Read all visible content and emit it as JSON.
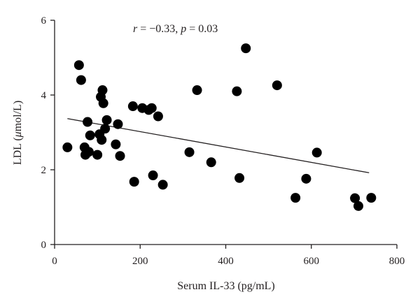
{
  "chart_data": {
    "type": "scatter",
    "title": "",
    "xlabel": "Serum IL-33 (pg/mL)",
    "ylabel_prefix": "LDL (",
    "ylabel_unit_italic": "μ",
    "ylabel_suffix": "mol/L)",
    "xlim": [
      0,
      800
    ],
    "ylim": [
      0,
      6
    ],
    "x_ticks": [
      0,
      200,
      400,
      600,
      800
    ],
    "y_ticks": [
      0,
      2,
      4,
      6
    ],
    "grid": false,
    "annotation": {
      "r_symbol": "r",
      "r_text": " = −0.33, ",
      "p_symbol": "p",
      "p_text": " = 0.03"
    },
    "trendline": {
      "x": [
        30,
        735
      ],
      "y": [
        3.37,
        1.92
      ]
    },
    "points": [
      {
        "x": 30,
        "y": 2.6
      },
      {
        "x": 57,
        "y": 4.8
      },
      {
        "x": 62,
        "y": 4.4
      },
      {
        "x": 70,
        "y": 2.6
      },
      {
        "x": 72,
        "y": 2.4
      },
      {
        "x": 77,
        "y": 3.28
      },
      {
        "x": 80,
        "y": 2.48
      },
      {
        "x": 83,
        "y": 2.92
      },
      {
        "x": 100,
        "y": 2.4
      },
      {
        "x": 105,
        "y": 2.95
      },
      {
        "x": 108,
        "y": 3.95
      },
      {
        "x": 110,
        "y": 2.8
      },
      {
        "x": 112,
        "y": 4.13
      },
      {
        "x": 114,
        "y": 3.78
      },
      {
        "x": 118,
        "y": 3.1
      },
      {
        "x": 122,
        "y": 3.33
      },
      {
        "x": 143,
        "y": 2.68
      },
      {
        "x": 148,
        "y": 3.22
      },
      {
        "x": 153,
        "y": 2.37
      },
      {
        "x": 183,
        "y": 3.7
      },
      {
        "x": 186,
        "y": 1.68
      },
      {
        "x": 205,
        "y": 3.65
      },
      {
        "x": 220,
        "y": 3.6
      },
      {
        "x": 227,
        "y": 3.65
      },
      {
        "x": 230,
        "y": 1.85
      },
      {
        "x": 242,
        "y": 3.43
      },
      {
        "x": 253,
        "y": 1.6
      },
      {
        "x": 315,
        "y": 2.47
      },
      {
        "x": 333,
        "y": 4.13
      },
      {
        "x": 366,
        "y": 2.2
      },
      {
        "x": 426,
        "y": 4.1
      },
      {
        "x": 432,
        "y": 1.78
      },
      {
        "x": 447,
        "y": 5.25
      },
      {
        "x": 520,
        "y": 4.26
      },
      {
        "x": 563,
        "y": 1.25
      },
      {
        "x": 588,
        "y": 1.76
      },
      {
        "x": 613,
        "y": 2.46
      },
      {
        "x": 702,
        "y": 1.24
      },
      {
        "x": 710,
        "y": 1.03
      },
      {
        "x": 740,
        "y": 1.25
      }
    ]
  }
}
